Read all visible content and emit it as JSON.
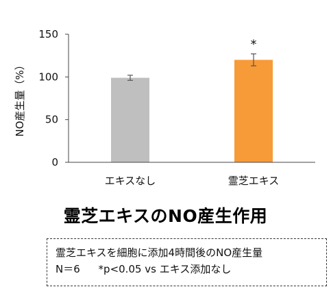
{
  "chart_data": {
    "type": "bar",
    "categories": [
      "エキスなし",
      "霊芝エキス"
    ],
    "values": [
      99,
      120
    ],
    "errors": [
      3,
      7
    ],
    "significance": [
      "",
      "*"
    ],
    "ylabel": "NO産生量（%）",
    "xlabel": "",
    "ylim": [
      0,
      150
    ],
    "yticks": [
      0,
      50,
      100,
      150
    ],
    "colors": [
      "#bfbfbf",
      "#f79a38"
    ],
    "grid": false
  },
  "headline": "霊芝エキスのNO産生作用",
  "note": {
    "line1": "霊芝エキスを細胞に添加4時間後のNO産生量",
    "n_label": "N＝6",
    "significance_note": "*p<0.05 vs エキス添加なし"
  }
}
